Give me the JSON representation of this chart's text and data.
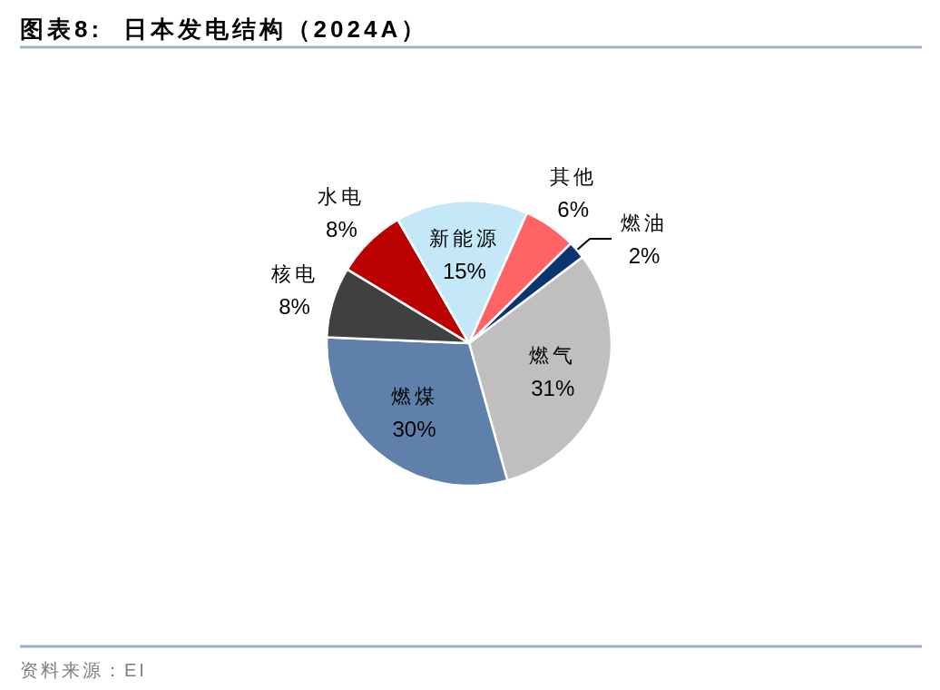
{
  "chart_data": {
    "type": "pie",
    "title": "图表8:  日本发电结构（2024A）",
    "categories": [
      "燃气",
      "燃煤",
      "核电",
      "水电",
      "新能源",
      "其他",
      "燃油"
    ],
    "values": [
      31,
      30,
      8,
      8,
      15,
      6,
      2
    ],
    "value_labels": [
      "31%",
      "30%",
      "8%",
      "8%",
      "15%",
      "6%",
      "2%"
    ],
    "colors": [
      "#bfbfbf",
      "#5e80aa",
      "#404040",
      "#bb0000",
      "#c4e8f8",
      "#ff6363",
      "#0a3472"
    ],
    "annotations": [
      "资料来源：EI"
    ]
  }
}
